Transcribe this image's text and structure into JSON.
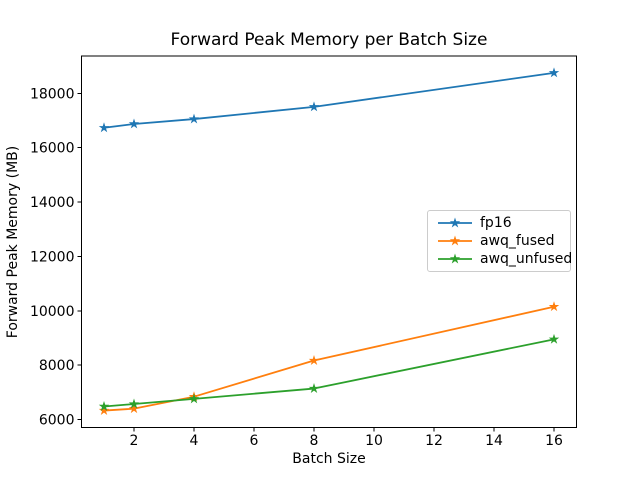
{
  "figure": {
    "background": "#ffffff",
    "text_color": "#000000",
    "axis_color": "#000000",
    "legend_border_color": "#cccccc"
  },
  "chart_data": {
    "type": "line",
    "title": "Forward Peak Memory per Batch Size",
    "xlabel": "Batch Size",
    "ylabel": "Forward Peak Memory (MB)",
    "x": [
      1,
      2,
      4,
      8,
      16
    ],
    "series": [
      {
        "name": "fp16",
        "color": "#1f77b4",
        "values": [
          16730,
          16870,
          17050,
          17500,
          18750
        ]
      },
      {
        "name": "awq_fused",
        "color": "#ff7f0e",
        "values": [
          6330,
          6400,
          6840,
          8170,
          10150
        ]
      },
      {
        "name": "awq_unfused",
        "color": "#2ca02c",
        "values": [
          6480,
          6570,
          6760,
          7140,
          8950
        ]
      }
    ],
    "xticks": [
      2,
      4,
      6,
      8,
      10,
      12,
      14,
      16
    ],
    "yticks": [
      6000,
      8000,
      10000,
      12000,
      14000,
      16000,
      18000
    ],
    "xlim": [
      0.25,
      16.75
    ],
    "ylim": [
      5700,
      19370
    ],
    "marker": "star",
    "grid": false,
    "legend_position": "center right"
  }
}
